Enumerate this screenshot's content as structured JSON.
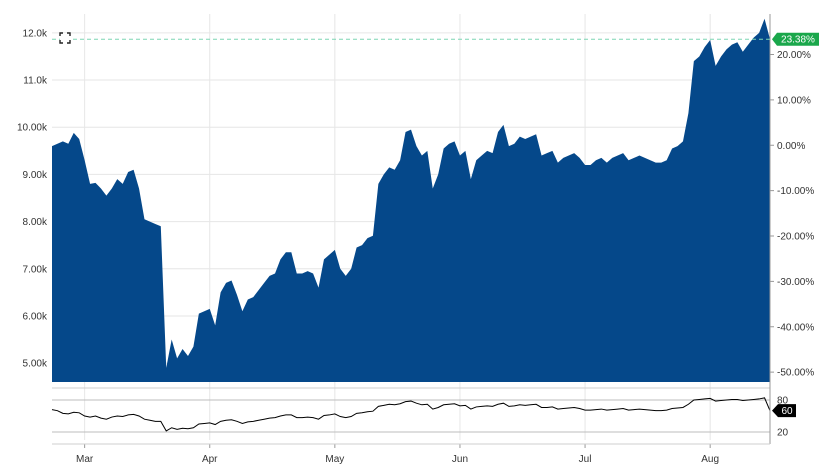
{
  "chart_data": {
    "type": "area",
    "colors": {
      "area": "#05488a",
      "oscillator": "#000000",
      "reference": "#7dd6b4",
      "badge_green": "#1aa74b",
      "badge_black": "#000000"
    },
    "y_left_ticks": [
      "5.00k",
      "6.00k",
      "7.00k",
      "8.00k",
      "9.00k",
      "10.00k",
      "11.0k",
      "12.0k"
    ],
    "y_left_tick_values": [
      5000,
      6000,
      7000,
      8000,
      9000,
      10000,
      11000,
      12000
    ],
    "y_right_ticks": [
      "-50.00%",
      "-40.00%",
      "-30.00%",
      "-20.00%",
      "-10.00%",
      "0.00%",
      "10.00%",
      "20.00%"
    ],
    "y_right_tick_values": [
      -50,
      -40,
      -30,
      -20,
      -10,
      0,
      10,
      20
    ],
    "x_ticks": [
      "Mar",
      "Apr",
      "May",
      "Jun",
      "Jul",
      "Aug"
    ],
    "x_tick_index": [
      6,
      29,
      52,
      75,
      98,
      121
    ],
    "y_range": [
      4600,
      12400
    ],
    "percent_base": 9618,
    "reference_value": 11866,
    "current_change_label": "23.38%",
    "values": [
      9600,
      9650,
      9700,
      9650,
      9880,
      9750,
      9300,
      8800,
      8820,
      8700,
      8550,
      8700,
      8900,
      8800,
      9050,
      9100,
      8700,
      8050,
      8000,
      7950,
      7900,
      4900,
      5500,
      5100,
      5300,
      5150,
      5350,
      6050,
      6100,
      6150,
      5800,
      6500,
      6700,
      6750,
      6450,
      6100,
      6350,
      6400,
      6550,
      6700,
      6850,
      6900,
      7200,
      7350,
      7350,
      6900,
      6900,
      6950,
      6900,
      6600,
      7200,
      7300,
      7400,
      7000,
      6850,
      7000,
      7450,
      7500,
      7650,
      7700,
      8800,
      9000,
      9150,
      9100,
      9300,
      9900,
      9950,
      9600,
      9400,
      9500,
      8700,
      9000,
      9550,
      9650,
      9700,
      9400,
      9500,
      8900,
      9300,
      9400,
      9500,
      9450,
      9900,
      10050,
      9600,
      9650,
      9800,
      9750,
      9800,
      9850,
      9400,
      9450,
      9500,
      9250,
      9350,
      9400,
      9450,
      9350,
      9200,
      9200,
      9300,
      9350,
      9250,
      9350,
      9400,
      9450,
      9300,
      9350,
      9400,
      9350,
      9300,
      9250,
      9250,
      9300,
      9550,
      9600,
      9700,
      10300,
      11400,
      11500,
      11700,
      11850,
      11300,
      11500,
      11650,
      11750,
      11800,
      11600,
      11750,
      11900,
      12000,
      12300,
      11866
    ],
    "oscillator": {
      "label": "60",
      "ticks": [
        "80",
        "20"
      ],
      "tick_values": [
        80,
        20
      ],
      "y_range": [
        5,
        95
      ],
      "values": [
        62,
        60,
        55,
        54,
        57,
        56,
        50,
        48,
        50,
        46,
        44,
        48,
        50,
        49,
        52,
        53,
        50,
        44,
        42,
        40,
        40,
        22,
        28,
        25,
        27,
        26,
        28,
        35,
        36,
        37,
        34,
        40,
        42,
        43,
        40,
        36,
        39,
        40,
        42,
        44,
        46,
        47,
        50,
        52,
        52,
        47,
        47,
        48,
        47,
        44,
        51,
        52,
        54,
        49,
        47,
        49,
        55,
        56,
        58,
        59,
        68,
        70,
        72,
        71,
        73,
        77,
        78,
        74,
        71,
        72,
        63,
        66,
        71,
        72,
        73,
        69,
        70,
        63,
        67,
        68,
        69,
        68,
        72,
        74,
        68,
        69,
        71,
        70,
        71,
        72,
        66,
        66,
        67,
        63,
        64,
        65,
        66,
        64,
        61,
        61,
        62,
        63,
        61,
        62,
        63,
        64,
        61,
        62,
        63,
        62,
        61,
        60,
        60,
        61,
        64,
        65,
        66,
        72,
        80,
        81,
        82,
        83,
        78,
        79,
        80,
        81,
        81,
        79,
        80,
        81,
        82,
        84,
        60
      ]
    }
  }
}
